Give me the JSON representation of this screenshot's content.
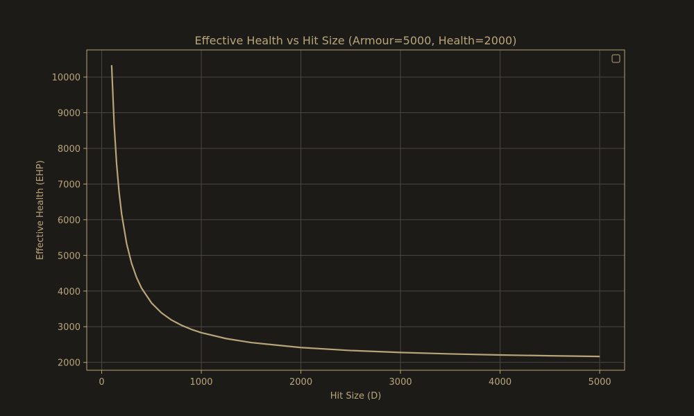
{
  "colors": {
    "background": "#1d1b18",
    "plot_background": "#1d1b18",
    "frame": "#b8a57a",
    "text": "#b8a57a",
    "grid": "#4a4741",
    "line": "#b8a57a"
  },
  "chart_data": {
    "type": "line",
    "title": "Effective Health vs Hit Size (Armour=5000, Health=2000)",
    "xlabel": "Hit Size (D)",
    "ylabel": "Effective Health (EHP)",
    "xlim": [
      -150,
      5250
    ],
    "ylim": [
      1780,
      10760
    ],
    "xticks": [
      0,
      1000,
      2000,
      3000,
      4000,
      5000
    ],
    "yticks": [
      2000,
      3000,
      4000,
      5000,
      6000,
      7000,
      8000,
      9000,
      10000
    ],
    "grid": true,
    "legend": "top-right, empty",
    "series": [
      {
        "name": "",
        "x": [
          100,
          125,
          150,
          175,
          200,
          250,
          300,
          350,
          400,
          500,
          600,
          700,
          800,
          900,
          1000,
          1250,
          1500,
          2000,
          2500,
          3000,
          3500,
          4000,
          4500,
          5000
        ],
        "y": [
          10333,
          8667,
          7556,
          6762,
          6167,
          5333,
          4778,
          4381,
          4083,
          3667,
          3389,
          3190,
          3042,
          2926,
          2833,
          2667,
          2556,
          2417,
          2333,
          2278,
          2238,
          2208,
          2185,
          2167
        ]
      }
    ]
  }
}
